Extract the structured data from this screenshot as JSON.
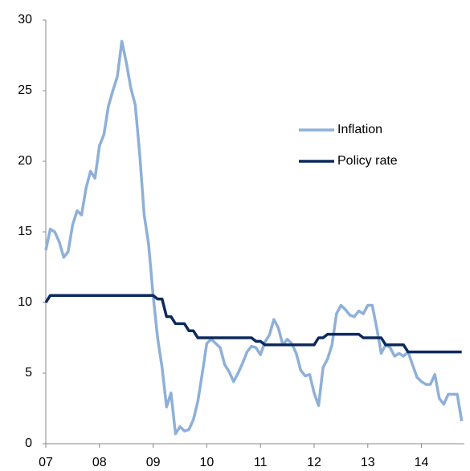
{
  "chart_data": {
    "type": "line",
    "x": [
      7,
      7.0833,
      7.1667,
      7.25,
      7.3333,
      7.4167,
      7.5,
      7.5833,
      7.6667,
      7.75,
      7.8333,
      7.9167,
      8,
      8.0833,
      8.1667,
      8.25,
      8.3333,
      8.4167,
      8.5,
      8.5833,
      8.6667,
      8.75,
      8.8333,
      8.9167,
      9,
      9.0833,
      9.1667,
      9.25,
      9.3333,
      9.4167,
      9.5,
      9.5833,
      9.6667,
      9.75,
      9.8333,
      9.9167,
      10,
      10.0833,
      10.1667,
      10.25,
      10.3333,
      10.4167,
      10.5,
      10.5833,
      10.6667,
      10.75,
      10.8333,
      10.9167,
      11,
      11.0833,
      11.1667,
      11.25,
      11.3333,
      11.4167,
      11.5,
      11.5833,
      11.6667,
      11.75,
      11.8333,
      11.9167,
      12,
      12.0833,
      12.1667,
      12.25,
      12.3333,
      12.4167,
      12.5,
      12.5833,
      12.6667,
      12.75,
      12.8333,
      12.9167,
      13,
      13.0833,
      13.1667,
      13.25,
      13.3333,
      13.4167,
      13.5,
      13.5833,
      13.6667,
      13.75,
      13.8333,
      13.9167,
      14,
      14.0833,
      14.1667,
      14.25,
      14.3333,
      14.4167,
      14.5,
      14.5833,
      14.6667,
      14.75
    ],
    "series": [
      {
        "name": "Inflation",
        "color": "#8eb0d8",
        "values": [
          13.7,
          15.2,
          15.0,
          14.3,
          13.2,
          13.6,
          15.5,
          16.5,
          16.2,
          18.1,
          19.3,
          18.8,
          21.1,
          21.9,
          23.9,
          25.0,
          26.0,
          28.5,
          27.0,
          25.2,
          24.0,
          20.5,
          16.2,
          14.1,
          10.5,
          7.5,
          5.4,
          2.6,
          3.6,
          0.7,
          1.2,
          0.9,
          1.0,
          1.7,
          3.0,
          5.0,
          7.1,
          7.4,
          7.1,
          6.8,
          5.6,
          5.1,
          4.4,
          5.0,
          5.7,
          6.5,
          6.9,
          6.8,
          6.3,
          7.2,
          7.7,
          8.8,
          8.2,
          7.0,
          7.4,
          7.1,
          6.4,
          5.2,
          4.8,
          4.9,
          3.6,
          2.7,
          5.4,
          6.0,
          7.0,
          9.2,
          9.8,
          9.5,
          9.1,
          9.0,
          9.4,
          9.2,
          9.8,
          9.8,
          8.2,
          6.4,
          7.0,
          6.8,
          6.2,
          6.4,
          6.2,
          6.5,
          5.6,
          4.7,
          4.4,
          4.2,
          4.2,
          4.9,
          3.2,
          2.8,
          3.5,
          3.5,
          3.5,
          1.6
        ]
      },
      {
        "name": "Policy rate",
        "color": "#0d2a5e",
        "values": [
          10,
          10.5,
          10.5,
          10.5,
          10.5,
          10.5,
          10.5,
          10.5,
          10.5,
          10.5,
          10.5,
          10.5,
          10.5,
          10.5,
          10.5,
          10.5,
          10.5,
          10.5,
          10.5,
          10.5,
          10.5,
          10.5,
          10.5,
          10.5,
          10.5,
          10.25,
          10.25,
          9.0,
          9.0,
          8.5,
          8.5,
          8.5,
          8.0,
          8.0,
          7.5,
          7.5,
          7.5,
          7.5,
          7.5,
          7.5,
          7.5,
          7.5,
          7.5,
          7.5,
          7.5,
          7.5,
          7.5,
          7.25,
          7.25,
          7.0,
          7.0,
          7.0,
          7.0,
          7.0,
          7.0,
          7.0,
          7.0,
          7.0,
          7.0,
          7.0,
          7.0,
          7.5,
          7.5,
          7.75,
          7.75,
          7.75,
          7.75,
          7.75,
          7.75,
          7.75,
          7.75,
          7.5,
          7.5,
          7.5,
          7.5,
          7.5,
          7.0,
          7.0,
          7.0,
          7.0,
          7.0,
          6.5,
          6.5,
          6.5,
          6.5,
          6.5,
          6.5,
          6.5,
          6.5,
          6.5,
          6.5,
          6.5,
          6.5,
          6.5
        ]
      }
    ],
    "xlim": [
      7,
      14.8
    ],
    "xticks": [
      {
        "value": 7,
        "label": "07"
      },
      {
        "value": 8,
        "label": "08"
      },
      {
        "value": 9,
        "label": "09"
      },
      {
        "value": 10,
        "label": "10"
      },
      {
        "value": 11,
        "label": "11"
      },
      {
        "value": 12,
        "label": "12"
      },
      {
        "value": 13,
        "label": "13"
      },
      {
        "value": 14,
        "label": "14"
      }
    ],
    "ylim": [
      0,
      30
    ],
    "yticks": [
      0,
      5,
      10,
      15,
      20,
      25,
      30
    ],
    "grid": false,
    "legend": "right"
  }
}
